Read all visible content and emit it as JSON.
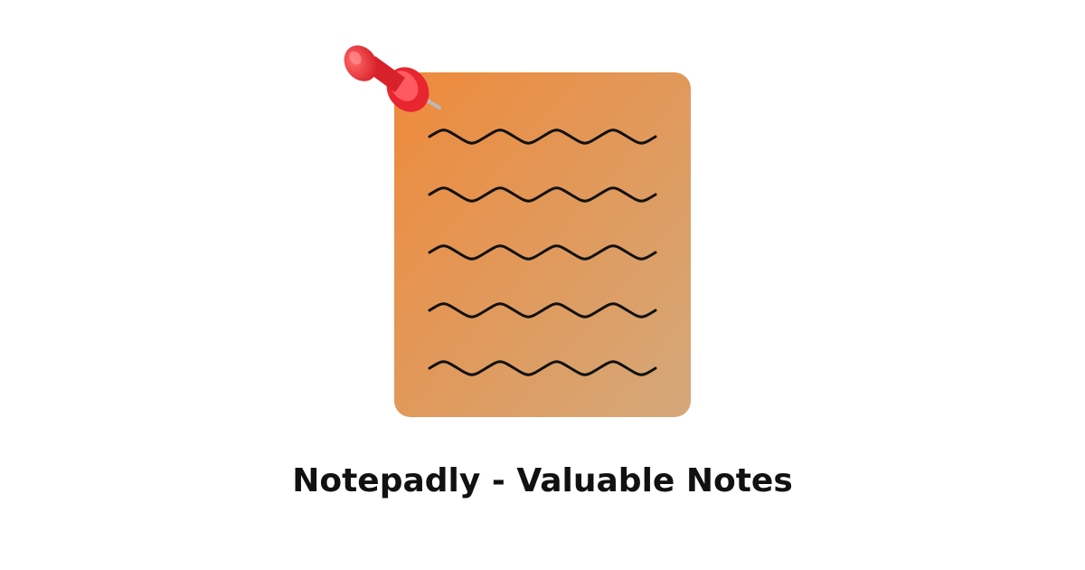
{
  "app": {
    "title": "Notepadly - Valuable Notes"
  },
  "illustration": {
    "icon": "notepad-icon",
    "pin_icon": "pushpin-icon",
    "line_count": 5,
    "colors": {
      "paper_gradient_start": "#EE8A3C",
      "paper_gradient_end": "#D4A87A",
      "ink": "#111111",
      "pin_red": "#E8262F",
      "pin_highlight": "#FF6A6A",
      "pin_needle": "#B9B9B9"
    }
  }
}
